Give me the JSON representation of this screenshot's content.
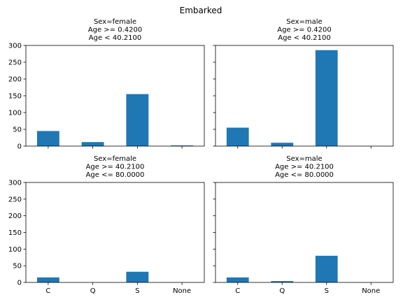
{
  "figure": {
    "suptitle": "Embarked"
  },
  "colors": {
    "bar": "#1f77b4",
    "axis": "#000000"
  },
  "chart_data": [
    {
      "type": "bar",
      "title_lines": [
        "Sex=female",
        "Age >= 0.4200",
        "Age < 40.2100"
      ],
      "categories": [
        "C",
        "Q",
        "S",
        "None"
      ],
      "values": [
        45,
        12,
        155,
        2
      ],
      "ylim": [
        0,
        300
      ],
      "yticks": [
        0,
        50,
        100,
        150,
        200,
        250,
        300
      ],
      "show_xticklabels": false,
      "show_yticklabels": true
    },
    {
      "type": "bar",
      "title_lines": [
        "Sex=male",
        "Age >= 0.4200",
        "Age < 40.2100"
      ],
      "categories": [
        "C",
        "Q",
        "S",
        "None"
      ],
      "values": [
        55,
        10,
        286,
        0
      ],
      "ylim": [
        0,
        300
      ],
      "yticks": [
        0,
        50,
        100,
        150,
        200,
        250,
        300
      ],
      "show_xticklabels": false,
      "show_yticklabels": false
    },
    {
      "type": "bar",
      "title_lines": [
        "Sex=female",
        "Age >= 40.2100",
        "Age <= 80.0000"
      ],
      "categories": [
        "C",
        "Q",
        "S",
        "None"
      ],
      "values": [
        15,
        0,
        32,
        0
      ],
      "ylim": [
        0,
        300
      ],
      "yticks": [
        0,
        50,
        100,
        150,
        200,
        250,
        300
      ],
      "show_xticklabels": true,
      "show_yticklabels": true
    },
    {
      "type": "bar",
      "title_lines": [
        "Sex=male",
        "Age >= 40.2100",
        "Age <= 80.0000"
      ],
      "categories": [
        "C",
        "Q",
        "S",
        "None"
      ],
      "values": [
        15,
        4,
        80,
        0
      ],
      "ylim": [
        0,
        300
      ],
      "yticks": [
        0,
        50,
        100,
        150,
        200,
        250,
        300
      ],
      "show_xticklabels": true,
      "show_yticklabels": false
    }
  ]
}
